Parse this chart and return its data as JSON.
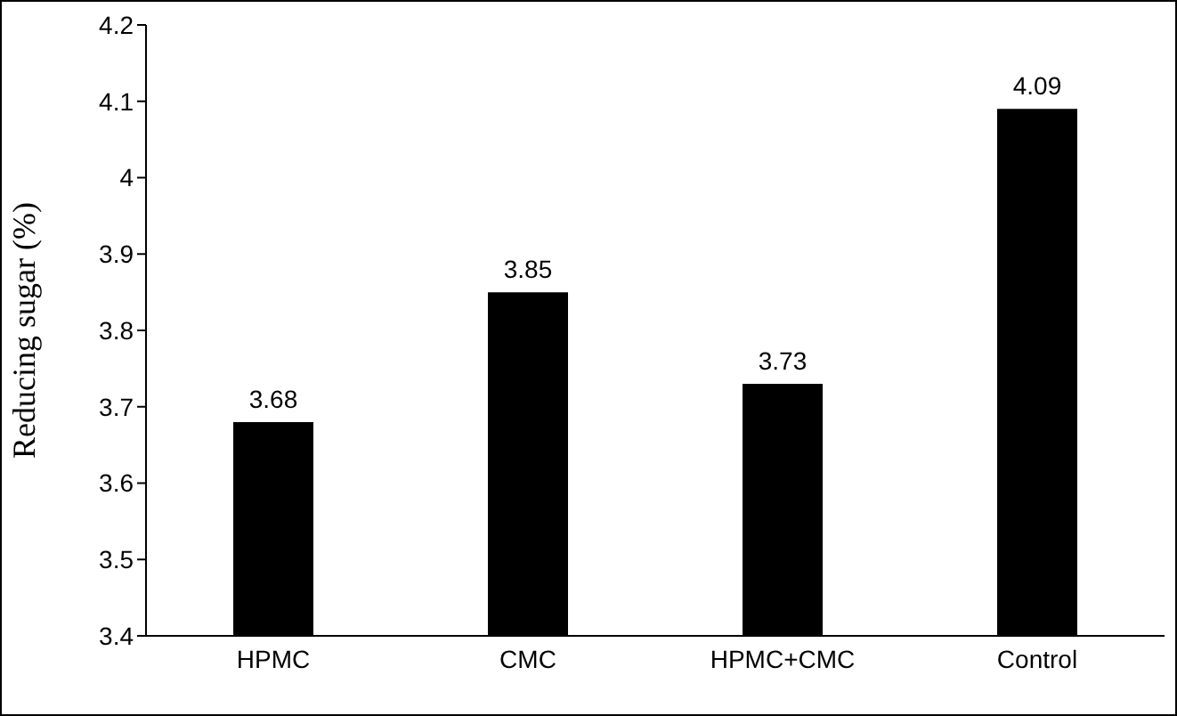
{
  "chart_data": {
    "type": "bar",
    "ylabel": "Reducing sugar (%)",
    "categories": [
      "HPMC",
      "CMC",
      "HPMC+CMC",
      "Control"
    ],
    "values": [
      3.68,
      3.85,
      3.73,
      4.09
    ],
    "color": "#000000",
    "ylim": [
      3.4,
      4.2
    ],
    "yticks": [
      3.4,
      3.5,
      3.6,
      3.7,
      3.8,
      3.9,
      4,
      4.1,
      4.2
    ],
    "data_labels": true
  }
}
